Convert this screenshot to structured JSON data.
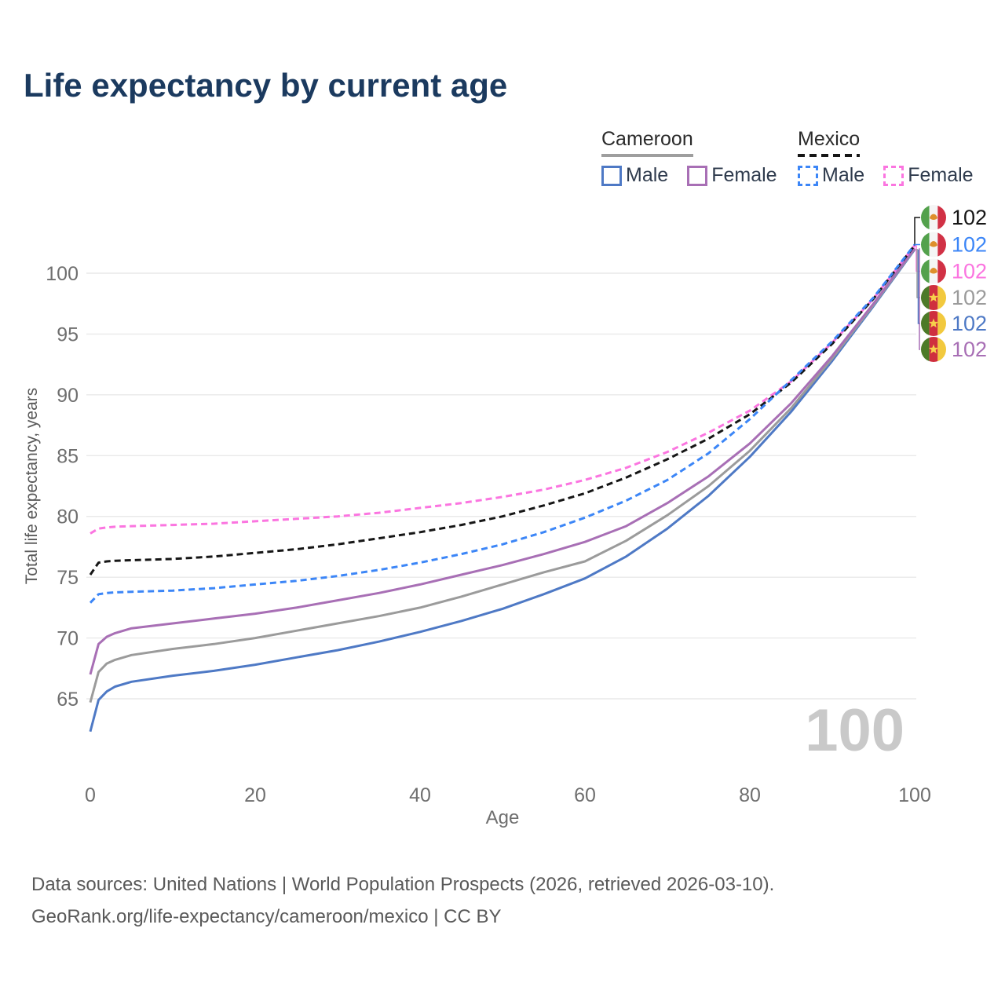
{
  "title": "Life expectancy by current age",
  "legend": {
    "groups": [
      {
        "name": "Cameroon",
        "line_style": "solid",
        "items": [
          {
            "label": "Male",
            "series_id": "cameroon-male"
          },
          {
            "label": "Female",
            "series_id": "cameroon-female"
          }
        ]
      },
      {
        "name": "Mexico",
        "line_style": "dashed",
        "items": [
          {
            "label": "Male",
            "series_id": "mexico-male"
          },
          {
            "label": "Female",
            "series_id": "mexico-female"
          }
        ]
      }
    ]
  },
  "chart_data": {
    "type": "line",
    "title": "Life expectancy by current age",
    "xlabel": "Age",
    "ylabel": "Total life expectancy, years",
    "x_ticks": [
      0,
      20,
      40,
      60,
      80,
      100
    ],
    "y_ticks": [
      65,
      70,
      75,
      80,
      85,
      90,
      95,
      100
    ],
    "xlim": [
      0,
      100
    ],
    "ylim": [
      62,
      103.5
    ],
    "grid": "horizontal",
    "watermark": "100",
    "series": [
      {
        "id": "cameroon-male",
        "country": "Cameroon",
        "sex": "Male",
        "color": "#4e79c5",
        "dash": false,
        "end_label": "102",
        "points": [
          [
            0,
            62.3
          ],
          [
            1,
            64.9
          ],
          [
            2,
            65.6
          ],
          [
            3,
            66.0
          ],
          [
            5,
            66.4
          ],
          [
            10,
            66.9
          ],
          [
            15,
            67.3
          ],
          [
            20,
            67.8
          ],
          [
            25,
            68.4
          ],
          [
            30,
            69.0
          ],
          [
            35,
            69.7
          ],
          [
            40,
            70.5
          ],
          [
            45,
            71.4
          ],
          [
            50,
            72.4
          ],
          [
            55,
            73.6
          ],
          [
            60,
            74.9
          ],
          [
            65,
            76.7
          ],
          [
            70,
            79.0
          ],
          [
            75,
            81.7
          ],
          [
            80,
            84.9
          ],
          [
            85,
            88.6
          ],
          [
            90,
            92.8
          ],
          [
            95,
            97.3
          ],
          [
            100,
            101.95
          ]
        ]
      },
      {
        "id": "cameroon-both",
        "country": "Cameroon",
        "sex": "Both sexes",
        "color": "#9b9b9b",
        "dash": false,
        "end_label": "102",
        "points": [
          [
            0,
            64.7
          ],
          [
            1,
            67.2
          ],
          [
            2,
            67.9
          ],
          [
            3,
            68.2
          ],
          [
            5,
            68.6
          ],
          [
            10,
            69.1
          ],
          [
            15,
            69.5
          ],
          [
            20,
            70.0
          ],
          [
            25,
            70.6
          ],
          [
            30,
            71.2
          ],
          [
            35,
            71.8
          ],
          [
            40,
            72.5
          ],
          [
            45,
            73.4
          ],
          [
            50,
            74.4
          ],
          [
            55,
            75.4
          ],
          [
            60,
            76.3
          ],
          [
            65,
            78.0
          ],
          [
            70,
            80.1
          ],
          [
            75,
            82.5
          ],
          [
            80,
            85.4
          ],
          [
            85,
            88.9
          ],
          [
            90,
            93.0
          ],
          [
            95,
            97.4
          ],
          [
            100,
            102.0
          ]
        ]
      },
      {
        "id": "cameroon-female",
        "country": "Cameroon",
        "sex": "Female",
        "color": "#a86fb5",
        "dash": false,
        "end_label": "102",
        "points": [
          [
            0,
            67.0
          ],
          [
            1,
            69.5
          ],
          [
            2,
            70.1
          ],
          [
            3,
            70.4
          ],
          [
            5,
            70.8
          ],
          [
            10,
            71.2
          ],
          [
            15,
            71.6
          ],
          [
            20,
            72.0
          ],
          [
            25,
            72.5
          ],
          [
            30,
            73.1
          ],
          [
            35,
            73.7
          ],
          [
            40,
            74.4
          ],
          [
            45,
            75.2
          ],
          [
            50,
            76.0
          ],
          [
            55,
            76.9
          ],
          [
            60,
            77.9
          ],
          [
            65,
            79.2
          ],
          [
            70,
            81.1
          ],
          [
            75,
            83.3
          ],
          [
            80,
            86.0
          ],
          [
            85,
            89.3
          ],
          [
            90,
            93.2
          ],
          [
            95,
            97.5
          ],
          [
            100,
            102.05
          ]
        ]
      },
      {
        "id": "mexico-female",
        "country": "Mexico",
        "sex": "Female",
        "color": "#fb75e0",
        "dash": true,
        "end_label": "102",
        "points": [
          [
            0,
            78.6
          ],
          [
            1,
            79.0
          ],
          [
            2,
            79.1
          ],
          [
            3,
            79.15
          ],
          [
            5,
            79.2
          ],
          [
            10,
            79.3
          ],
          [
            15,
            79.4
          ],
          [
            20,
            79.6
          ],
          [
            25,
            79.8
          ],
          [
            30,
            80.0
          ],
          [
            35,
            80.3
          ],
          [
            40,
            80.7
          ],
          [
            45,
            81.1
          ],
          [
            50,
            81.6
          ],
          [
            55,
            82.2
          ],
          [
            60,
            83.0
          ],
          [
            65,
            84.0
          ],
          [
            70,
            85.3
          ],
          [
            75,
            86.9
          ],
          [
            80,
            88.7
          ],
          [
            85,
            91.1
          ],
          [
            90,
            94.3
          ],
          [
            95,
            97.9
          ],
          [
            100,
            102.3
          ]
        ]
      },
      {
        "id": "mexico-both",
        "country": "Mexico",
        "sex": "Both sexes",
        "color": "#161616",
        "dash": true,
        "end_label": "102",
        "points": [
          [
            0,
            75.2
          ],
          [
            1,
            76.2
          ],
          [
            2,
            76.3
          ],
          [
            3,
            76.35
          ],
          [
            5,
            76.4
          ],
          [
            10,
            76.5
          ],
          [
            15,
            76.7
          ],
          [
            20,
            77.0
          ],
          [
            25,
            77.3
          ],
          [
            30,
            77.7
          ],
          [
            35,
            78.2
          ],
          [
            40,
            78.7
          ],
          [
            45,
            79.3
          ],
          [
            50,
            80.0
          ],
          [
            55,
            80.9
          ],
          [
            60,
            81.9
          ],
          [
            65,
            83.2
          ],
          [
            70,
            84.7
          ],
          [
            75,
            86.4
          ],
          [
            80,
            88.4
          ],
          [
            85,
            91.0
          ],
          [
            90,
            94.2
          ],
          [
            95,
            97.9
          ],
          [
            100,
            102.3
          ]
        ]
      },
      {
        "id": "mexico-male",
        "country": "Mexico",
        "sex": "Male",
        "color": "#3c86f7",
        "dash": true,
        "end_label": "102",
        "points": [
          [
            0,
            72.9
          ],
          [
            1,
            73.6
          ],
          [
            2,
            73.7
          ],
          [
            3,
            73.75
          ],
          [
            5,
            73.8
          ],
          [
            10,
            73.9
          ],
          [
            15,
            74.1
          ],
          [
            20,
            74.4
          ],
          [
            25,
            74.7
          ],
          [
            30,
            75.1
          ],
          [
            35,
            75.6
          ],
          [
            40,
            76.2
          ],
          [
            45,
            76.9
          ],
          [
            50,
            77.7
          ],
          [
            55,
            78.7
          ],
          [
            60,
            79.9
          ],
          [
            65,
            81.3
          ],
          [
            70,
            83.0
          ],
          [
            75,
            85.2
          ],
          [
            80,
            88.0
          ],
          [
            85,
            91.2
          ],
          [
            90,
            94.4
          ],
          [
            95,
            98.0
          ],
          [
            100,
            102.35
          ]
        ]
      }
    ],
    "end_labels": [
      {
        "series_id": "mexico-both",
        "flag": "mexico",
        "value": "102"
      },
      {
        "series_id": "mexico-male",
        "flag": "mexico",
        "value": "102"
      },
      {
        "series_id": "mexico-female",
        "flag": "mexico",
        "value": "102"
      },
      {
        "series_id": "cameroon-both",
        "flag": "cameroon",
        "value": "102"
      },
      {
        "series_id": "cameroon-male",
        "flag": "cameroon",
        "value": "102"
      },
      {
        "series_id": "cameroon-female",
        "flag": "cameroon",
        "value": "102"
      }
    ]
  },
  "colors": {
    "title": "#1b3a5f",
    "grid": "#e9e9e9",
    "tick_text": "#6f6f6f",
    "axis_label": "#5a5a5a",
    "watermark": "#c9c9c9",
    "footer_text": "#595959",
    "cameroon_underline": "#9e9e9e",
    "mexico_underline": "#161616"
  },
  "footer": {
    "line1": "Data sources: United Nations | World Population Prospects (2026, retrieved 2026-03-10).",
    "line2": "GeoRank.org/life-expectancy/cameroon/mexico | CC BY"
  }
}
